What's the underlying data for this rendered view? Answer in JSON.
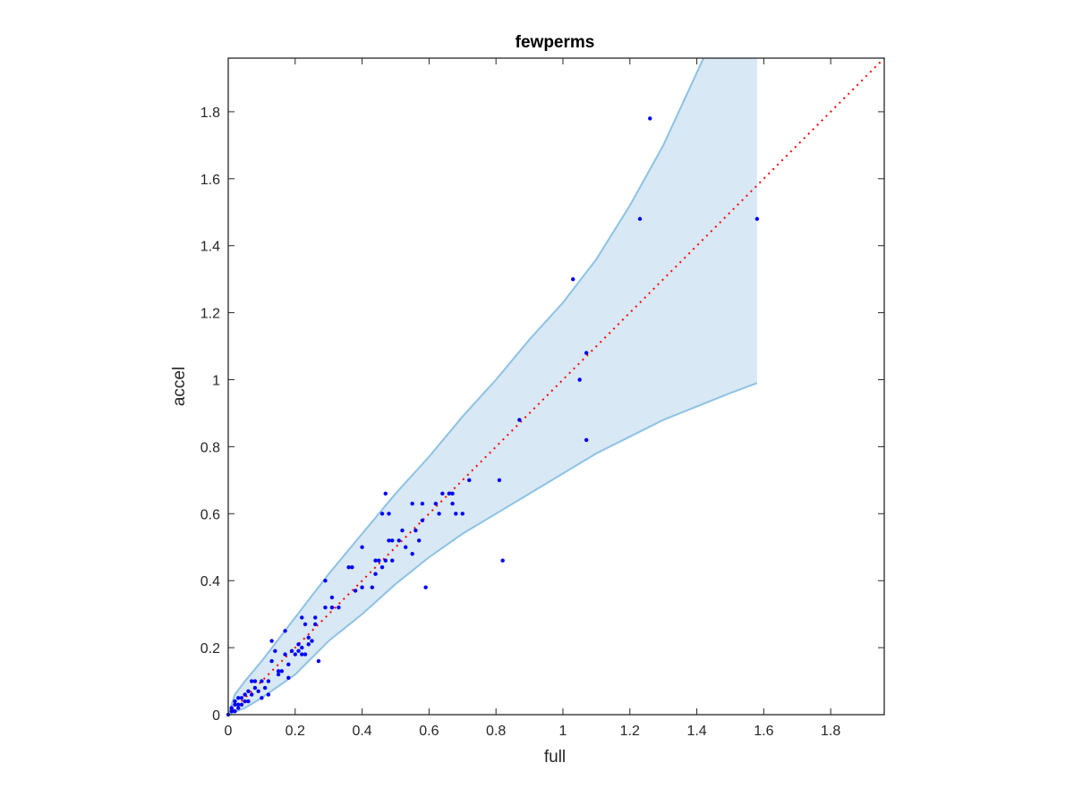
{
  "chart_data": {
    "type": "scatter",
    "title": "fewperms",
    "xlabel": "full",
    "ylabel": "accel",
    "xlim": [
      0,
      1.96
    ],
    "ylim": [
      0,
      1.96
    ],
    "xticks": [
      0,
      0.2,
      0.4,
      0.6,
      0.8,
      1,
      1.2,
      1.4,
      1.6,
      1.8
    ],
    "xtick_labels": [
      "0",
      "0.2",
      "0.4",
      "0.6",
      "0.8",
      "1",
      "1.2",
      "1.4",
      "1.6",
      "1.8"
    ],
    "yticks": [
      0,
      0.2,
      0.4,
      0.6,
      0.8,
      1,
      1.2,
      1.4,
      1.6,
      1.8
    ],
    "ytick_labels": [
      "0",
      "0.2",
      "0.4",
      "0.6",
      "0.8",
      "1",
      "1.2",
      "1.4",
      "1.6",
      "1.8"
    ],
    "grid": false,
    "colors": {
      "points": "#0000ff",
      "band_fill": "#d8e8f4",
      "band_edge": "#8dc2e3",
      "reference_line": "#ff0000",
      "axes": "#262626"
    },
    "reference_line": {
      "style": "dotted",
      "x": [
        0,
        1.96
      ],
      "y": [
        0,
        1.96
      ]
    },
    "band": {
      "upper": {
        "x": [
          0,
          0.02,
          0.05,
          0.1,
          0.2,
          0.3,
          0.4,
          0.5,
          0.6,
          0.7,
          0.8,
          0.9,
          1.0,
          1.1,
          1.2,
          1.3,
          1.42
        ],
        "y": [
          0,
          0.06,
          0.1,
          0.16,
          0.29,
          0.42,
          0.54,
          0.66,
          0.77,
          0.89,
          1.0,
          1.12,
          1.23,
          1.36,
          1.52,
          1.7,
          1.96
        ]
      },
      "lower": {
        "x": [
          0,
          0.05,
          0.1,
          0.2,
          0.3,
          0.4,
          0.5,
          0.6,
          0.7,
          0.8,
          0.9,
          1.0,
          1.1,
          1.2,
          1.3,
          1.4,
          1.5,
          1.58
        ],
        "y": [
          0,
          0.02,
          0.05,
          0.12,
          0.22,
          0.3,
          0.39,
          0.47,
          0.54,
          0.6,
          0.66,
          0.72,
          0.78,
          0.83,
          0.88,
          0.92,
          0.96,
          0.99
        ]
      },
      "right_edge_x": 1.58
    },
    "points": {
      "x": [
        0.0,
        0.01,
        0.01,
        0.02,
        0.02,
        0.02,
        0.03,
        0.03,
        0.03,
        0.04,
        0.04,
        0.05,
        0.05,
        0.06,
        0.06,
        0.07,
        0.07,
        0.08,
        0.08,
        0.09,
        0.1,
        0.1,
        0.11,
        0.12,
        0.12,
        0.13,
        0.13,
        0.14,
        0.15,
        0.15,
        0.16,
        0.17,
        0.17,
        0.18,
        0.18,
        0.19,
        0.2,
        0.21,
        0.21,
        0.22,
        0.22,
        0.22,
        0.23,
        0.23,
        0.24,
        0.24,
        0.25,
        0.26,
        0.26,
        0.27,
        0.29,
        0.29,
        0.31,
        0.31,
        0.33,
        0.36,
        0.37,
        0.38,
        0.4,
        0.4,
        0.43,
        0.44,
        0.44,
        0.45,
        0.46,
        0.46,
        0.47,
        0.47,
        0.48,
        0.48,
        0.49,
        0.49,
        0.51,
        0.52,
        0.53,
        0.55,
        0.55,
        0.56,
        0.57,
        0.58,
        0.58,
        0.59,
        0.62,
        0.63,
        0.64,
        0.66,
        0.67,
        0.67,
        0.68,
        0.7,
        0.72,
        0.81,
        0.82,
        0.87,
        1.03,
        1.05,
        1.07,
        1.07,
        1.23,
        1.26,
        1.58
      ],
      "y": [
        0.0,
        0.01,
        0.02,
        0.01,
        0.03,
        0.04,
        0.02,
        0.03,
        0.05,
        0.03,
        0.05,
        0.04,
        0.06,
        0.04,
        0.07,
        0.06,
        0.1,
        0.08,
        0.1,
        0.07,
        0.05,
        0.1,
        0.08,
        0.1,
        0.06,
        0.22,
        0.16,
        0.19,
        0.12,
        0.13,
        0.13,
        0.25,
        0.18,
        0.11,
        0.15,
        0.19,
        0.18,
        0.21,
        0.19,
        0.29,
        0.18,
        0.2,
        0.27,
        0.18,
        0.21,
        0.23,
        0.22,
        0.27,
        0.29,
        0.16,
        0.32,
        0.4,
        0.35,
        0.32,
        0.32,
        0.44,
        0.44,
        0.37,
        0.38,
        0.5,
        0.38,
        0.46,
        0.42,
        0.46,
        0.44,
        0.6,
        0.66,
        0.46,
        0.52,
        0.6,
        0.46,
        0.52,
        0.52,
        0.55,
        0.5,
        0.63,
        0.48,
        0.55,
        0.52,
        0.63,
        0.58,
        0.38,
        0.63,
        0.6,
        0.66,
        0.66,
        0.66,
        0.63,
        0.6,
        0.6,
        0.7,
        0.7,
        0.46,
        0.88,
        1.3,
        1.0,
        1.08,
        0.82,
        1.48,
        1.78,
        1.48
      ]
    }
  }
}
